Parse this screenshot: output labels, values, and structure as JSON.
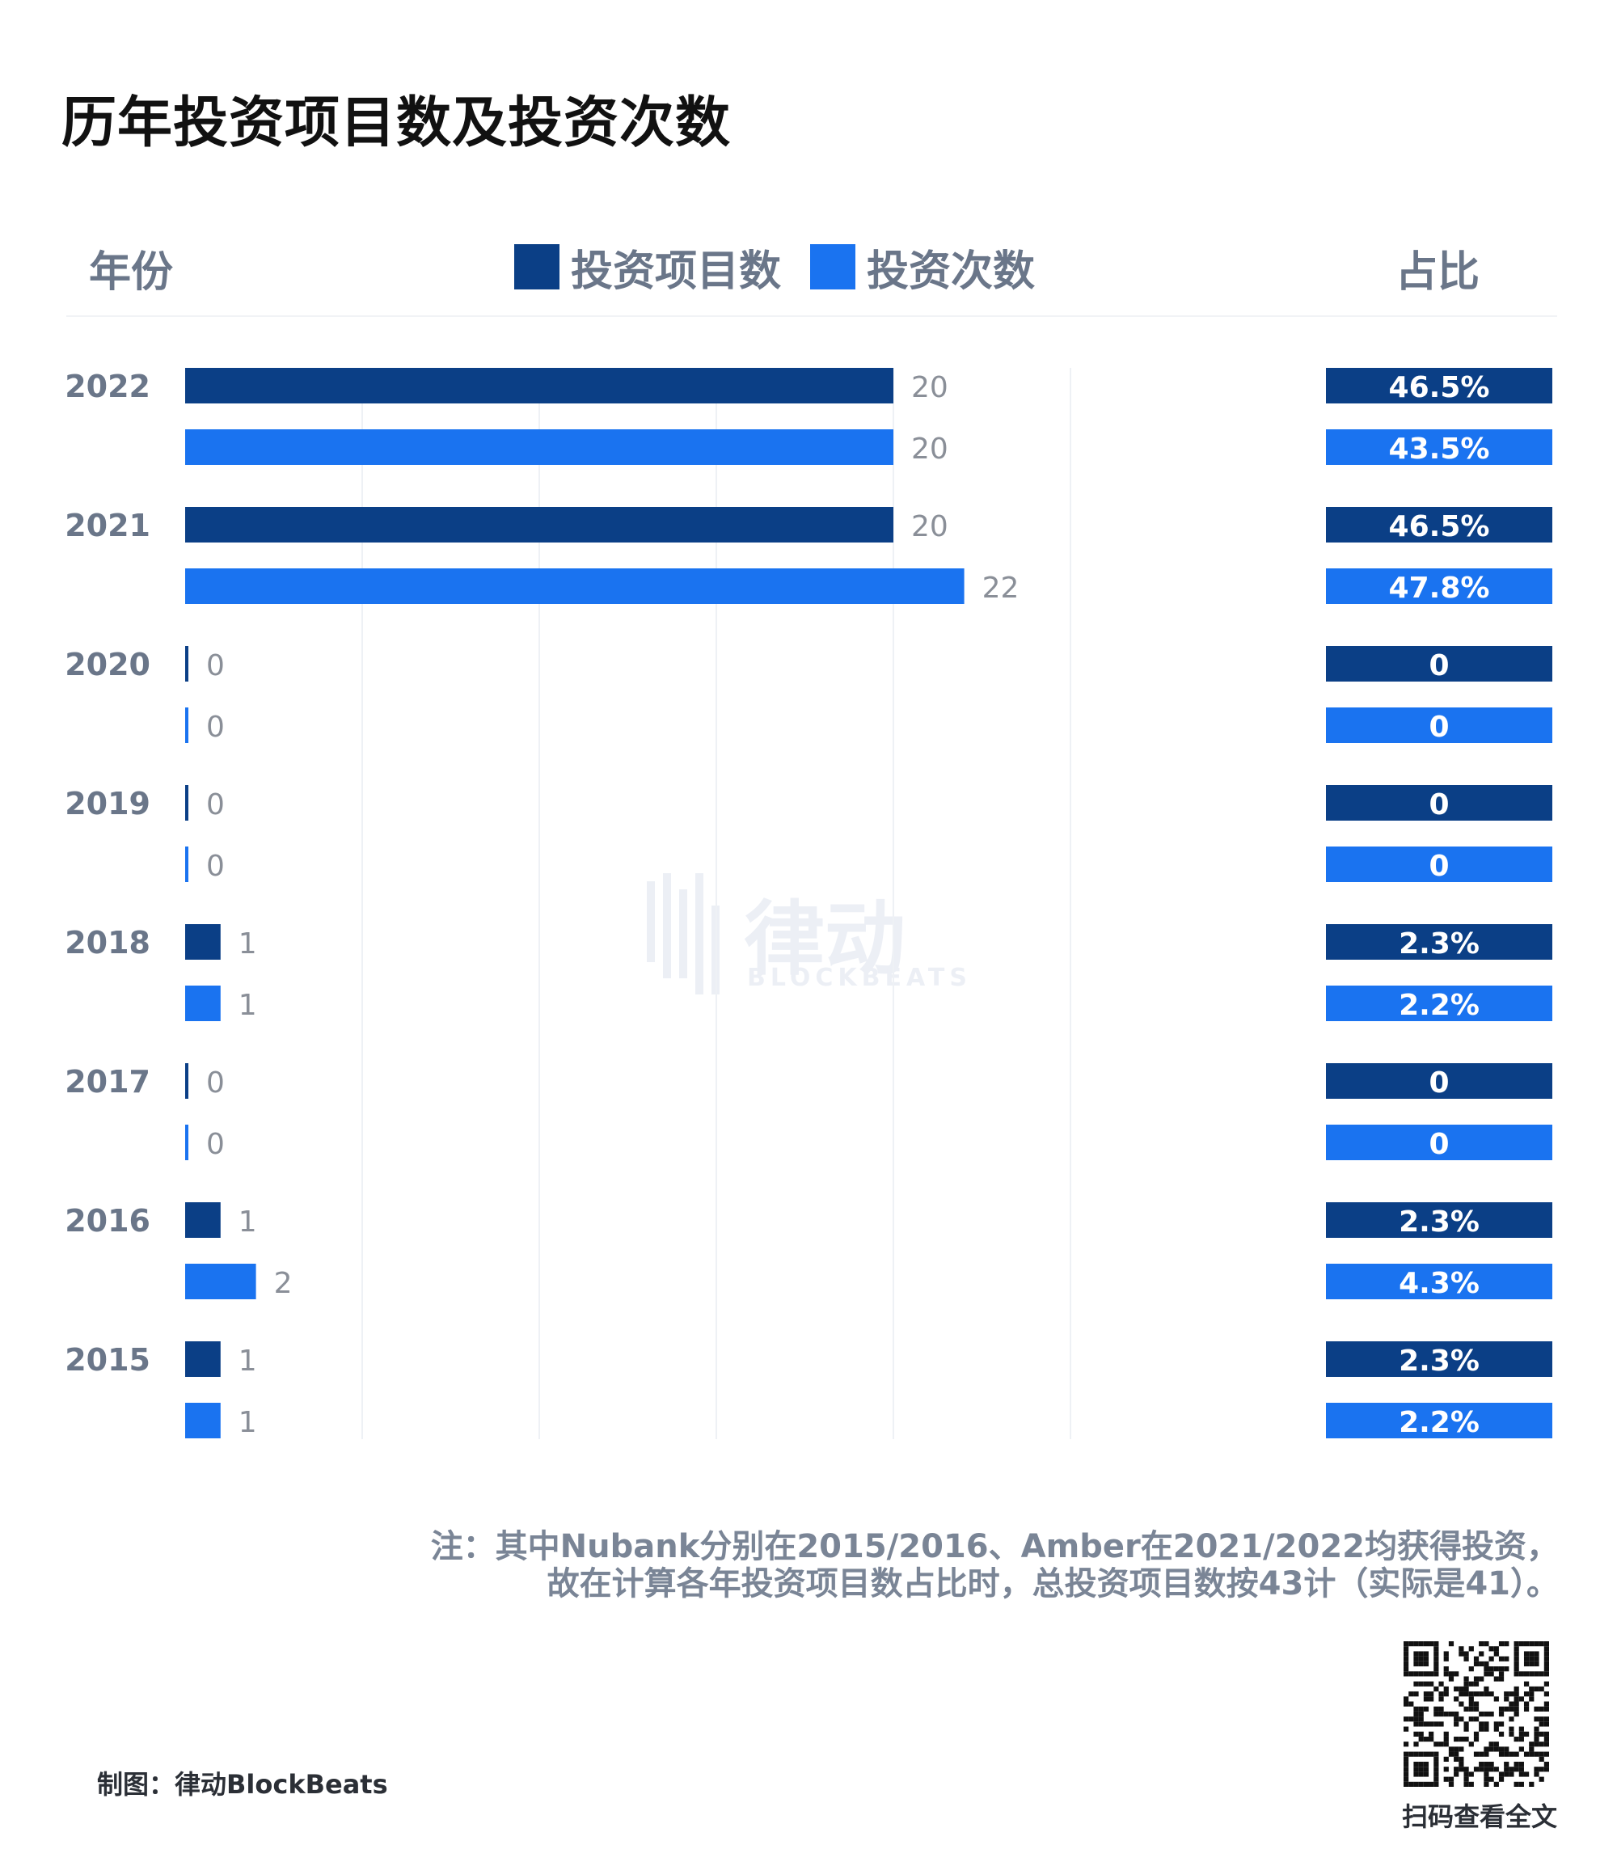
{
  "title": "历年投资项目数及投资次数",
  "header": {
    "year_label": "年份",
    "ratio_label": "占比"
  },
  "colors": {
    "projects": "#0b3f86",
    "investments": "#1a73f0",
    "gridline": "#eef1f5",
    "value_text": "#8a8f98",
    "year_text": "#6a7689"
  },
  "chart_data": {
    "type": "bar",
    "orientation": "horizontal",
    "title": "历年投资项目数及投资次数",
    "xlabel": "",
    "ylabel": "年份",
    "grid": true,
    "legend_position": "top",
    "categories": [
      "2022",
      "2021",
      "2020",
      "2019",
      "2018",
      "2017",
      "2016",
      "2015"
    ],
    "series": [
      {
        "name": "投资项目数",
        "color": "#0b3f86",
        "values": [
          20,
          20,
          0,
          0,
          1,
          0,
          1,
          1
        ],
        "labels": [
          "20",
          "20",
          "0",
          "0",
          "1",
          "0",
          "1",
          "1"
        ],
        "share_labels": [
          "46.5%",
          "46.5%",
          "0",
          "0",
          "2.3%",
          "0",
          "2.3%",
          "2.3%"
        ]
      },
      {
        "name": "投资次数",
        "color": "#1a73f0",
        "values": [
          20,
          22,
          0,
          0,
          1,
          0,
          2,
          1
        ],
        "labels": [
          "20",
          "22",
          "0",
          "0",
          "1",
          "0",
          "2",
          "1"
        ],
        "share_labels": [
          "43.5%",
          "47.8%",
          "0",
          "0",
          "2.2%",
          "0",
          "4.3%",
          "2.2%"
        ]
      }
    ]
  },
  "note": {
    "line1": "注：其中Nubank分别在2015/2016、Amber在2021/2022均获得投资，",
    "line2": "故在计算各年投资项目数占比时，总投资项目数按43计（实际是41）。"
  },
  "credit": "制图：律动BlockBeats",
  "qr": {
    "caption": "扫码查看全文"
  },
  "watermark": {
    "text": "律动",
    "subtext": "BLOCKBEATS"
  }
}
